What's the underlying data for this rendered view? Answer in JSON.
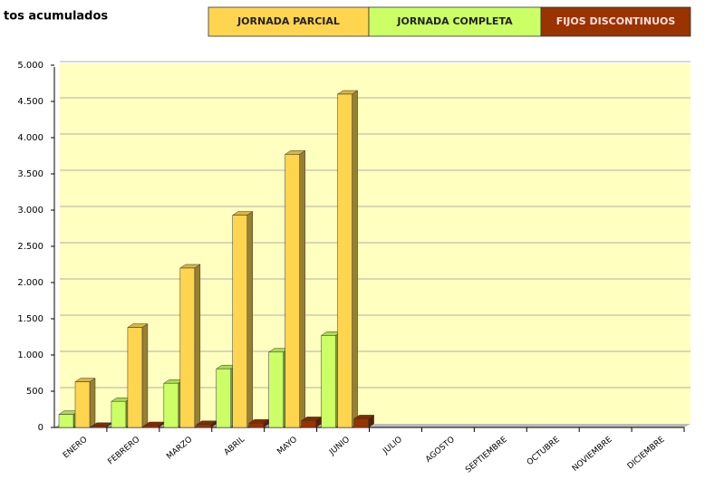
{
  "chart_data": {
    "type": "bar3d",
    "title": "tos  acumulados",
    "categories": [
      "ENERO",
      "FEBRERO",
      "MARZO",
      "ABRIL",
      "MAYO",
      "JUNIO",
      "JULIO",
      "AGOSTO",
      "SEPTIEMBRE",
      "OCTUBRE",
      "NOVIEMBRE",
      "DICIEMBRE"
    ],
    "series": [
      {
        "name": "JORNADA COMPLETA",
        "color": "#ccff66",
        "values": [
          180,
          360,
          610,
          810,
          1040,
          1270,
          null,
          null,
          null,
          null,
          null,
          null
        ]
      },
      {
        "name": "JORNADA PARCIAL",
        "color": "#ffd54f",
        "values": [
          630,
          1380,
          2200,
          2930,
          3770,
          4600,
          null,
          null,
          null,
          null,
          null,
          null
        ]
      },
      {
        "name": "FIJOS DISCONTINUOS",
        "color": "#993300",
        "values": [
          15,
          25,
          40,
          60,
          95,
          120,
          null,
          null,
          null,
          null,
          null,
          null
        ]
      }
    ],
    "legend_order": [
      "JORNADA PARCIAL",
      "JORNADA COMPLETA",
      "FIJOS DISCONTINUOS"
    ],
    "ylim": [
      0,
      5000
    ],
    "yticks": [
      0,
      500,
      {
        "value": 1000,
        "label": "1.000"
      },
      {
        "value": 1500,
        "label": "1.500"
      },
      {
        "value": 2000,
        "label": "2.000"
      },
      {
        "value": 2500,
        "label": "2.500"
      },
      {
        "value": 3000,
        "label": "3.000"
      },
      {
        "value": 3500,
        "label": "3.500"
      },
      {
        "value": 4000,
        "label": "4.000"
      },
      {
        "value": 4500,
        "label": "4.500"
      },
      {
        "value": 5000,
        "label": "5.000"
      }
    ],
    "grid": true
  }
}
